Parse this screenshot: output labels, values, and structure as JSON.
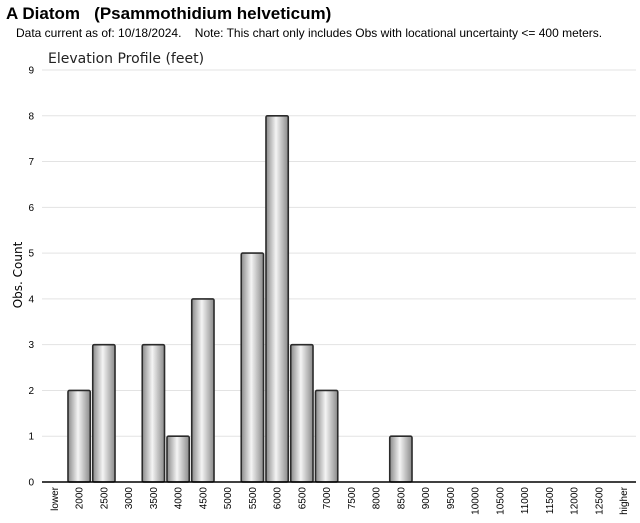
{
  "header": {
    "title": "A Diatom   (Psammothidium helveticum)",
    "subtitle": "Data current as of: 10/18/2024.    Note: This chart only includes Obs with locational uncertainty <= 400 meters."
  },
  "chart_data": {
    "type": "bar",
    "title": "Elevation Profile (feet)",
    "xlabel": "",
    "ylabel": "Obs. Count",
    "ylim": [
      0,
      9
    ],
    "yticks": [
      "0",
      "1",
      "2",
      "3",
      "4",
      "5",
      "6",
      "7",
      "8",
      "9"
    ],
    "grid": true,
    "categories": [
      "lower",
      "2000",
      "2500",
      "3000",
      "3500",
      "4000",
      "4500",
      "5000",
      "5500",
      "6000",
      "6500",
      "7000",
      "7500",
      "8000",
      "8500",
      "9000",
      "9500",
      "10000",
      "10500",
      "11000",
      "11500",
      "12000",
      "12500",
      "higher"
    ],
    "values": [
      0,
      2,
      3,
      0,
      3,
      1,
      4,
      0,
      5,
      8,
      3,
      2,
      0,
      0,
      1,
      0,
      0,
      0,
      0,
      0,
      0,
      0,
      0,
      0
    ],
    "colors": {
      "bar_fill_mid": "#f4f4f4",
      "bar_fill_edge": "#8a8a8a",
      "bar_stroke": "#2b2b2b",
      "grid": "#e3e3e3",
      "axis": "#000000"
    }
  }
}
